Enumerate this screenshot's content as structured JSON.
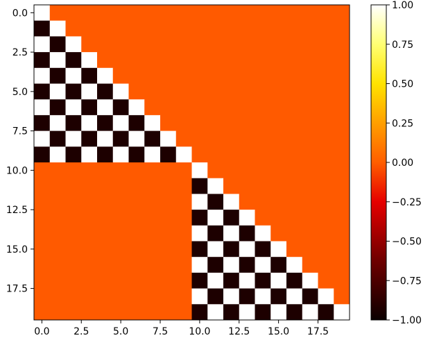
{
  "chart_data": {
    "type": "heatmap",
    "colormap": "hot",
    "size": 20,
    "blocks": [
      {
        "start": 0,
        "end": 9
      },
      {
        "start": 10,
        "end": 19
      }
    ],
    "cell_rule": "Within each diagonal block: cells on the diagonal = 1, cells below the diagonal alternate -1 / 1 starting with -1 next to the diagonal; all other cells = 0",
    "x_ticks": [
      "0.0",
      "2.5",
      "5.0",
      "7.5",
      "10.0",
      "12.5",
      "15.0",
      "17.5"
    ],
    "y_ticks": [
      "0.0",
      "2.5",
      "5.0",
      "7.5",
      "10.0",
      "12.5",
      "15.0",
      "17.5"
    ],
    "x_tick_values": [
      0,
      2.5,
      5,
      7.5,
      10,
      12.5,
      15,
      17.5
    ],
    "y_tick_values": [
      0,
      2.5,
      5,
      7.5,
      10,
      12.5,
      15,
      17.5
    ],
    "colorbar": {
      "min": -1,
      "max": 1,
      "ticks": [
        "1.00",
        "0.75",
        "0.50",
        "0.25",
        "0.00",
        "−0.25",
        "−0.50",
        "−0.75",
        "−1.00"
      ],
      "tick_values": [
        1,
        0.75,
        0.5,
        0.25,
        0,
        -0.25,
        -0.5,
        -0.75,
        -1
      ]
    },
    "xlabel": "",
    "ylabel": "",
    "title": ""
  }
}
